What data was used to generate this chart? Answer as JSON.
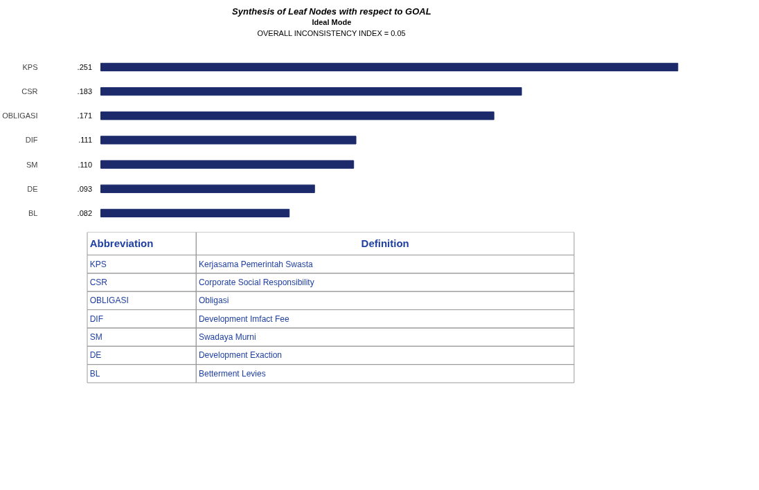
{
  "chart_data": [
    {
      "type": "bar",
      "orientation": "horizontal",
      "title": "Synthesis of Leaf Nodes with respect to GOAL",
      "subtitle": "Ideal Mode",
      "annotations": [
        "OVERALL INCONSISTENCY INDEX = 0.05"
      ],
      "categories": [
        "KPS",
        "CSR",
        "OBLIGASI",
        "DIF",
        "SM",
        "DE",
        "BL"
      ],
      "values": [
        0.251,
        0.183,
        0.171,
        0.111,
        0.11,
        0.093,
        0.082
      ],
      "value_labels": [
        ".251",
        ".183",
        ".171",
        ".111",
        ".110",
        ".093",
        ".082"
      ],
      "color": "#1c2a6b",
      "grid": false
    },
    {
      "type": "other",
      "annotations": [
        "Abbreviation",
        "Definition",
        "KPS",
        "Kerjasama Pemerintah Swasta",
        "CSR",
        "Corporate Social Responsibility",
        "OBLIGASI",
        "Obligasi",
        "DIF",
        "Development Imfact Fee",
        "SM",
        "Swadaya Murni",
        "DE",
        "Development Exaction",
        "BL",
        "Betterment Levies"
      ]
    }
  ]
}
